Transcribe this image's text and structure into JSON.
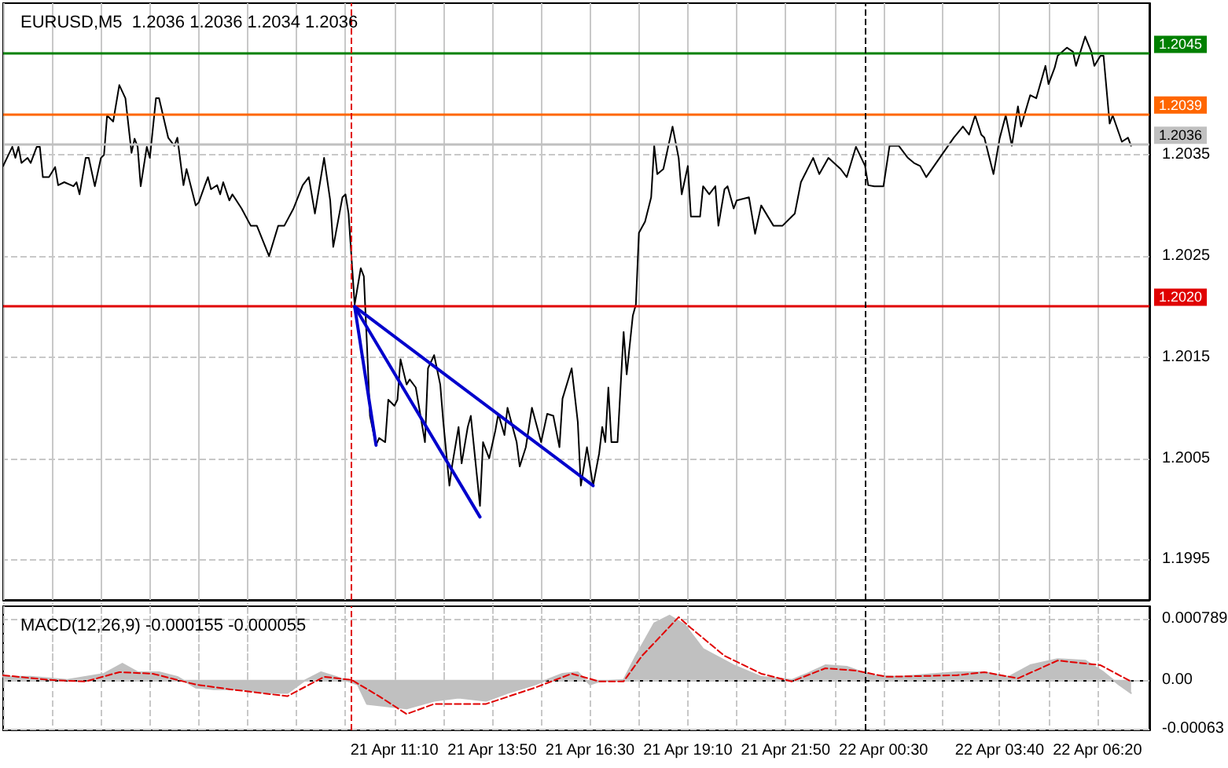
{
  "chart_data": [
    {
      "type": "line",
      "title": "EURUSD,M5  1.2036 1.2036 1.2034 1.2036",
      "xlim": [
        "--04-21T00:30",
        "--04-22T07:45"
      ],
      "ylim": [
        1.1991,
        1.205
      ],
      "xticks": [
        {
          "value": "--04-21T00:30",
          "label": null
        },
        {
          "value": "--04-21T01:50",
          "label": null
        },
        {
          "value": "--04-21T03:10",
          "label": null
        },
        {
          "value": "--04-21T04:30",
          "label": null
        },
        {
          "value": "--04-21T05:50",
          "label": null
        },
        {
          "value": "--04-21T07:10",
          "label": null
        },
        {
          "value": "--04-21T08:30",
          "label": null
        },
        {
          "value": "--04-21T09:50",
          "label": null
        },
        {
          "value": "--04-21T11:10",
          "label": null
        },
        {
          "value": "--04-21T12:30",
          "label": null
        },
        {
          "value": "--04-21T13:50",
          "label": null
        },
        {
          "value": "--04-21T15:10",
          "label": null
        },
        {
          "value": "--04-21T16:30",
          "label": null
        },
        {
          "value": "--04-21T17:50",
          "label": null
        },
        {
          "value": "--04-21T19:10",
          "label": null
        },
        {
          "value": "--04-21T20:30",
          "label": null
        },
        {
          "value": "--04-21T21:50",
          "label": null
        },
        {
          "value": "--04-21T23:10",
          "label": null
        },
        {
          "value": "--04-22T00:30",
          "label": null
        },
        {
          "value": "--04-22T02:05",
          "label": null
        },
        {
          "value": "--04-22T03:40",
          "label": null
        },
        {
          "value": "--04-22T05:00",
          "label": null
        },
        {
          "value": "--04-22T06:20",
          "label": null
        }
      ],
      "yticks": [
        1.1995,
        1.2005,
        1.2015,
        1.2025,
        1.2035
      ],
      "tick_labels": "y",
      "grid": true,
      "marker": "none",
      "series": [
        {
          "color": "#000000",
          "line_style": "solid",
          "x": [
            "--04-21T00:30",
            "--04-21T00:45",
            "--04-21T00:50",
            "--04-21T00:55",
            "--04-21T01:00",
            "--04-21T01:10",
            "--04-21T01:15",
            "--04-21T01:25",
            "--04-21T01:30",
            "--04-21T01:35",
            "--04-21T01:45",
            "--04-21T01:55",
            "--04-21T02:00",
            "--04-21T02:10",
            "--04-21T02:25",
            "--04-21T02:30",
            "--04-21T02:35",
            "--04-21T02:45",
            "--04-21T02:50",
            "--04-21T03:00",
            "--04-21T03:10",
            "--04-21T03:15",
            "--04-21T03:20",
            "--04-21T03:30",
            "--04-21T03:40",
            "--04-21T03:50",
            "--04-21T04:00",
            "--04-21T04:05",
            "--04-21T04:10",
            "--04-21T04:15",
            "--04-21T04:25",
            "--04-21T04:30",
            "--04-21T04:40",
            "--04-21T04:45",
            "--04-21T05:00",
            "--04-21T05:10",
            "--04-21T05:15",
            "--04-21T05:25",
            "--04-21T05:30",
            "--04-21T05:45",
            "--04-21T05:50",
            "--04-21T06:00",
            "--04-21T06:05",
            "--04-21T06:10",
            "--04-21T06:20",
            "--04-21T06:25",
            "--04-21T06:30",
            "--04-21T06:40",
            "--04-21T06:45",
            "--04-21T07:00",
            "--04-21T07:15",
            "--04-21T07:25",
            "--04-21T07:45",
            "--04-21T08:00",
            "--04-21T08:10",
            "--04-21T08:25",
            "--04-21T08:40",
            "--04-21T08:50",
            "--04-21T09:00",
            "--04-21T09:15",
            "--04-21T09:25",
            "--04-21T09:30",
            "--04-21T09:45",
            "--04-21T09:50",
            "--04-21T09:55",
            "--04-21T10:05",
            "--04-21T10:15",
            "--04-21T10:20",
            "--04-21T10:25",
            "--04-21T10:30",
            "--04-21T10:40",
            "--04-21T10:45",
            "--04-21T10:55",
            "--04-21T11:00",
            "--04-21T11:10",
            "--04-21T11:15",
            "--04-21T11:20",
            "--04-21T11:30",
            "--04-21T11:35",
            "--04-21T11:45",
            "--04-21T12:00",
            "--04-21T12:05",
            "--04-21T12:15",
            "--04-21T12:25",
            "--04-21T12:30",
            "--04-21T12:40",
            "--04-21T12:45",
            "--04-21T12:55",
            "--04-21T13:00",
            "--04-21T13:10",
            "--04-21T13:15",
            "--04-21T13:30",
            "--04-21T13:35",
            "--04-21T13:45",
            "--04-21T13:55",
            "--04-21T14:00",
            "--04-21T14:10",
            "--04-21T14:15",
            "--04-21T14:30",
            "--04-21T14:35",
            "--04-21T14:45",
            "--04-21T14:55",
            "--04-21T15:10",
            "--04-21T15:20",
            "--04-21T15:30",
            "--04-21T15:40",
            "--04-21T15:45",
            "--04-21T16:00",
            "--04-21T16:10",
            "--04-21T16:15",
            "--04-21T16:25",
            "--04-21T16:35",
            "--04-21T16:45",
            "--04-21T16:50",
            "--04-21T16:55",
            "--04-21T17:00",
            "--04-21T17:05",
            "--04-21T17:15",
            "--04-21T17:25",
            "--04-21T17:30",
            "--04-21T17:40",
            "--04-21T17:45",
            "--04-21T17:50",
            "--04-21T18:00",
            "--04-21T18:10",
            "--04-21T18:15",
            "--04-21T18:20",
            "--04-21T18:30",
            "--04-21T18:45",
            "--04-21T18:55",
            "--04-21T19:00",
            "--04-21T19:10",
            "--04-21T19:15",
            "--04-21T19:30",
            "--04-21T19:35",
            "--04-21T19:45",
            "--04-21T19:55",
            "--04-21T20:00",
            "--04-21T20:10",
            "--04-21T20:15",
            "--04-21T20:25",
            "--04-21T20:30",
            "--04-21T20:50",
            "--04-21T21:00",
            "--04-21T21:10",
            "--04-21T21:30",
            "--04-21T21:45",
            "--04-21T22:00",
            "--04-21T22:05",
            "--04-21T22:15",
            "--04-21T22:35",
            "--04-21T22:45",
            "--04-21T23:00",
            "--04-21T23:20",
            "--04-21T23:30",
            "--04-21T23:45",
            "--04-22T00:00",
            "--04-22T00:05",
            "--04-22T00:15",
            "--04-22T00:30",
            "--04-22T00:40",
            "--04-22T00:55",
            "--04-22T01:10",
            "--04-22T01:20",
            "--04-22T01:30",
            "--04-22T01:40",
            "--04-22T02:25",
            "--04-22T02:40",
            "--04-22T02:50",
            "--04-22T03:00",
            "--04-22T03:10",
            "--04-22T03:15",
            "--04-22T03:30",
            "--04-22T03:40",
            "--04-22T03:50",
            "--04-22T04:00",
            "--04-22T04:10",
            "--04-22T04:15",
            "--04-22T04:30",
            "--04-22T04:40",
            "--04-22T04:55",
            "--04-22T05:00",
            "--04-22T05:10",
            "--04-22T05:15",
            "--04-22T05:30",
            "--04-22T05:40",
            "--04-22T05:45",
            "--04-22T06:00",
            "--04-22T06:10",
            "--04-22T06:15",
            "--04-22T06:25",
            "--04-22T06:30",
            "--04-22T06:40",
            "--04-22T06:45",
            "--04-22T07:00",
            "--04-22T07:10",
            "--04-22T07:15"
          ],
          "values": [
            1.20339,
            1.20358,
            1.20347,
            1.20358,
            1.20342,
            1.20347,
            1.20342,
            1.20358,
            1.20358,
            1.20328,
            1.20328,
            1.20338,
            1.2032,
            1.20323,
            1.20319,
            1.20323,
            1.20311,
            1.20347,
            1.20347,
            1.20319,
            1.20347,
            1.2035,
            1.20389,
            1.20383,
            1.20419,
            1.20406,
            1.20352,
            1.20366,
            1.20358,
            1.20319,
            1.20358,
            1.20347,
            1.20406,
            1.20406,
            1.20367,
            1.20359,
            1.20367,
            1.2032,
            1.20336,
            1.203,
            1.20303,
            1.2032,
            1.20328,
            1.20316,
            1.2032,
            1.20311,
            1.20323,
            1.20305,
            1.20311,
            1.20297,
            1.2028,
            1.2028,
            1.2025,
            1.2028,
            1.2028,
            1.20297,
            1.2032,
            1.20328,
            1.20292,
            1.20347,
            1.20305,
            1.20259,
            1.20308,
            1.20311,
            1.20292,
            1.20202,
            1.20238,
            1.2023,
            1.20164,
            1.20092,
            1.20063,
            1.2007,
            1.20066,
            1.20108,
            1.20102,
            1.20108,
            1.20148,
            1.20123,
            1.20128,
            1.2012,
            1.20066,
            1.20139,
            1.20152,
            1.20123,
            1.20086,
            1.20023,
            1.20045,
            1.20081,
            1.20045,
            1.20081,
            1.20092,
            1.20003,
            1.20066,
            1.2005,
            1.20077,
            1.20094,
            1.20073,
            1.201,
            1.20066,
            1.20042,
            1.20061,
            1.201,
            1.20066,
            1.20094,
            1.20092,
            1.20061,
            1.20109,
            1.20139,
            1.20086,
            1.20023,
            1.20061,
            1.20023,
            1.20055,
            1.20081,
            1.20066,
            1.2012,
            1.20066,
            1.20066,
            1.20175,
            1.20133,
            1.20191,
            1.20202,
            1.20273,
            1.20284,
            1.20308,
            1.20359,
            1.20331,
            1.20336,
            1.20378,
            1.20347,
            1.20311,
            1.20339,
            1.20289,
            1.20289,
            1.20319,
            1.20311,
            1.20319,
            1.2028,
            1.20316,
            1.20319,
            1.20297,
            1.20305,
            1.20308,
            1.20272,
            1.203,
            1.2028,
            1.2028,
            1.20289,
            1.20292,
            1.20323,
            1.20347,
            1.20331,
            1.20347,
            1.20336,
            1.20328,
            1.20358,
            1.20339,
            1.2032,
            1.20319,
            1.20319,
            1.20359,
            1.20359,
            1.20347,
            1.20342,
            1.20339,
            1.20328,
            1.20367,
            1.20378,
            1.2037,
            1.20389,
            1.2037,
            1.20367,
            1.20331,
            1.20366,
            1.20389,
            1.20359,
            1.20398,
            1.20378,
            1.20409,
            1.20406,
            1.20438,
            1.2042,
            1.20436,
            1.20448,
            1.20456,
            1.20452,
            1.20438,
            1.20467,
            1.20452,
            1.20438,
            1.20448,
            1.20448,
            1.20381,
            1.20389,
            1.20363,
            1.20367,
            1.20359
          ]
        },
        {
          "color": "#0000cc",
          "line_style": "solid",
          "x": [
            "--04-21T10:05",
            "--04-21T10:40"
          ],
          "values": [
            1.202,
            1.20063
          ]
        },
        {
          "color": "#0000cc",
          "line_style": "solid",
          "x": [
            "--04-21T10:05",
            "--04-21T13:30"
          ],
          "values": [
            1.202,
            1.19992
          ]
        },
        {
          "color": "#0000cc",
          "line_style": "solid",
          "x": [
            "--04-21T10:05",
            "--04-21T16:35"
          ],
          "values": [
            1.202,
            1.20023
          ]
        }
      ],
      "ref_lines": [
        {
          "axis": "y",
          "value": 1.2045,
          "label": "1.2045",
          "color": "#008000",
          "line_style": "solid"
        },
        {
          "axis": "y",
          "value": 1.2039,
          "label": "1.2039",
          "color": "#ff6600",
          "line_style": "solid"
        },
        {
          "axis": "y",
          "value": 1.2036,
          "label": "1.2036",
          "color": "#c0c0c0",
          "line_style": "solid"
        },
        {
          "axis": "y",
          "value": 1.202,
          "label": "1.2020",
          "color": "#e00000",
          "line_style": "solid"
        },
        {
          "axis": "x",
          "value": "--04-21T10:00",
          "color": "#e00000",
          "line_style": "dashed"
        },
        {
          "axis": "x",
          "value": "--04-22T00:00",
          "color": "#000000",
          "line_style": "dashed"
        }
      ]
    },
    {
      "type": "area",
      "title": "MACD(12,26,9) -0.000155 -0.000055",
      "xlim": [
        "--04-21T00:30",
        "--04-22T07:45"
      ],
      "ylim": [
        -0.00065,
        0.00095
      ],
      "xticks": [
        {
          "value": "--04-21T00:30",
          "label": null
        },
        {
          "value": "--04-21T01:50",
          "label": null
        },
        {
          "value": "--04-21T03:10",
          "label": null
        },
        {
          "value": "--04-21T04:30",
          "label": null
        },
        {
          "value": "--04-21T05:50",
          "label": null
        },
        {
          "value": "--04-21T07:10",
          "label": null
        },
        {
          "value": "--04-21T08:30",
          "label": null
        },
        {
          "value": "--04-21T09:50",
          "label": null
        },
        {
          "value": "--04-21T11:10",
          "label": "21 Apr 11:10"
        },
        {
          "value": "--04-21T12:30",
          "label": null
        },
        {
          "value": "--04-21T13:50",
          "label": "21 Apr 13:50"
        },
        {
          "value": "--04-21T15:10",
          "label": null
        },
        {
          "value": "--04-21T16:30",
          "label": "21 Apr 16:30"
        },
        {
          "value": "--04-21T17:50",
          "label": null
        },
        {
          "value": "--04-21T19:10",
          "label": "21 Apr 19:10"
        },
        {
          "value": "--04-21T20:30",
          "label": null
        },
        {
          "value": "--04-21T21:50",
          "label": "21 Apr 21:50"
        },
        {
          "value": "--04-21T23:10",
          "label": null
        },
        {
          "value": "--04-22T00:30",
          "label": "22 Apr 00:30"
        },
        {
          "value": "--04-22T02:05",
          "label": null
        },
        {
          "value": "--04-22T03:40",
          "label": "22 Apr 03:40"
        },
        {
          "value": "--04-22T05:00",
          "label": null
        },
        {
          "value": "--04-22T06:20",
          "label": "22 Apr 06:20"
        }
      ],
      "yticks": [
        {
          "value": -0.00063,
          "label": "-0.00063"
        },
        {
          "value": 0,
          "label": "0.00"
        },
        0.000789
      ],
      "grid": true,
      "marker": "none",
      "series": [
        {
          "color": "#c0c0c0",
          "line_style": "solid",
          "x": [
            "--04-21T00:30",
            "--04-21T01:15",
            "--04-21T02:15",
            "--04-21T03:15",
            "--04-21T03:45",
            "--04-21T04:10",
            "--04-21T04:45",
            "--04-21T05:15",
            "--04-21T05:45",
            "--04-21T06:15",
            "--04-21T07:00",
            "--04-21T07:40",
            "--04-21T08:15",
            "--04-21T08:45",
            "--04-21T09:10",
            "--04-21T09:35",
            "--04-21T10:10",
            "--04-21T10:25",
            "--04-21T11:30",
            "--04-21T12:15",
            "--04-21T12:55",
            "--04-21T13:40",
            "--04-21T14:15",
            "--04-21T15:00",
            "--04-21T15:45",
            "--04-21T16:10",
            "--04-21T16:30",
            "--04-21T16:45",
            "--04-21T17:25",
            "--04-21T17:45",
            "--04-21T18:15",
            "--04-21T18:40",
            "--04-21T19:05",
            "--04-21T19:35",
            "--04-21T20:25",
            "--04-21T21:10",
            "--04-21T22:00",
            "--04-21T22:25",
            "--04-21T22:55",
            "--04-21T23:30",
            "--04-22T00:10",
            "--04-22T00:55",
            "--04-22T02:30",
            "--04-22T03:15",
            "--04-22T03:55",
            "--04-22T04:30",
            "--04-22T05:15",
            "--04-22T06:00",
            "--04-22T06:30",
            "--04-22T06:55",
            "--04-22T07:15"
          ],
          "values": [
            4e-05,
            4e-05,
            0,
            8e-05,
            0.00021,
            0.0001,
            0.0001,
            4e-05,
            -0.0001,
            -0.00012,
            -0.00012,
            -0.00017,
            -0.00017,
            0,
            0.0001,
            4e-05,
            -6e-05,
            -0.00031,
            -0.00037,
            -0.00027,
            -0.00023,
            -0.00027,
            -0.00017,
            -6e-05,
            8e-05,
            0.0001,
            -6e-05,
            -2e-05,
            0,
            0.00031,
            0.00073,
            0.00083,
            0.00071,
            0.0004,
            0.00019,
            4e-05,
            0,
            8e-05,
            0.00019,
            0.00017,
            6e-05,
            4e-05,
            0.0001,
            0.0001,
            4e-05,
            0.00019,
            0.00027,
            0.00025,
            0.0001,
            -6e-05,
            -0.00017
          ]
        },
        {
          "type": "line",
          "color": "#e00000",
          "line_style": "dashed",
          "x": [
            "--04-21T00:30",
            "--04-21T01:45",
            "--04-21T02:45",
            "--04-21T03:40",
            "--04-21T04:35",
            "--04-21T05:45",
            "--04-21T06:40",
            "--04-21T08:15",
            "--04-21T09:15",
            "--04-21T10:00",
            "--04-21T10:45",
            "--04-21T11:30",
            "--04-21T12:15",
            "--04-21T13:40",
            "--04-21T15:00",
            "--04-21T16:00",
            "--04-21T16:45",
            "--04-21T17:25",
            "--04-21T17:55",
            "--04-21T18:55",
            "--04-21T19:15",
            "--04-21T20:10",
            "--04-21T21:10",
            "--04-21T22:00",
            "--04-21T22:55",
            "--04-21T23:45",
            "--04-22T00:35",
            "--04-22T02:30",
            "--04-22T03:15",
            "--04-22T04:10",
            "--04-22T05:15",
            "--04-22T06:25",
            "--04-22T07:15"
          ],
          "values": [
            6e-05,
            0,
            -2e-05,
            0.0001,
            8e-05,
            -6e-05,
            -0.00012,
            -0.00021,
            4e-05,
            0,
            -0.00021,
            -0.00044,
            -0.00031,
            -0.00031,
            -0.0001,
            8e-05,
            -2e-05,
            -2e-05,
            0.00031,
            0.00081,
            0.00067,
            0.00031,
            8e-05,
            -2e-05,
            0.00015,
            0.00012,
            4e-05,
            6e-05,
            0.0001,
            2e-05,
            0.00025,
            0.00019,
            -2e-05
          ]
        }
      ],
      "ref_lines": [
        {
          "axis": "x",
          "value": "--04-21T10:00",
          "color": "#e00000",
          "line_style": "dashed"
        },
        {
          "axis": "x",
          "value": "--04-22T00:00",
          "color": "#000000",
          "line_style": "dashed"
        }
      ]
    }
  ]
}
